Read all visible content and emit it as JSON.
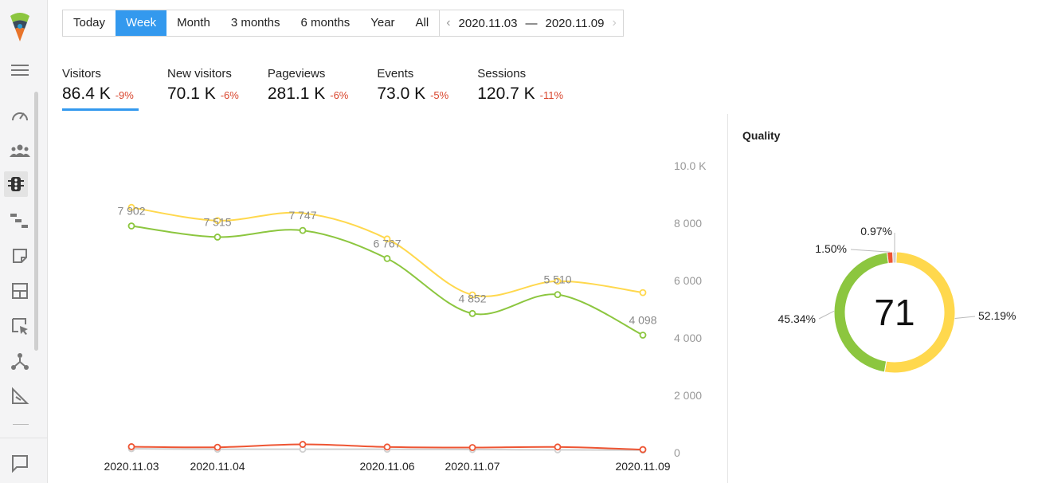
{
  "sidebar": {
    "icons": [
      "logo-icon",
      "menu-icon",
      "dashboard-icon",
      "visitors-icon",
      "traffic-icon",
      "funnel-icon",
      "notes-icon",
      "layout-icon",
      "click-icon",
      "network-icon",
      "report-icon",
      "chat-icon"
    ]
  },
  "period": {
    "buttons": [
      "Today",
      "Week",
      "Month",
      "3 months",
      "6 months",
      "Year",
      "All"
    ],
    "active": "Week",
    "date_from": "2020.11.03",
    "date_sep": "—",
    "date_to": "2020.11.09"
  },
  "metrics": [
    {
      "label": "Visitors",
      "value": "86.4 K",
      "change": "-9%"
    },
    {
      "label": "New visitors",
      "value": "70.1 K",
      "change": "-6%"
    },
    {
      "label": "Pageviews",
      "value": "281.1 K",
      "change": "-6%"
    },
    {
      "label": "Events",
      "value": "73.0 K",
      "change": "-5%"
    },
    {
      "label": "Sessions",
      "value": "120.7 K",
      "change": "-11%"
    }
  ],
  "colors": {
    "accent": "#3399ee",
    "negative": "#d9462e",
    "yellow": "#ffd84d",
    "green": "#8cc63f",
    "red": "#ee5533",
    "gray": "#d0d0d0"
  },
  "chart_data": {
    "type": "line",
    "y_ticks": [
      "10.0 K",
      "8 000",
      "6 000",
      "4 000",
      "2 000",
      "0"
    ],
    "ylim": [
      0,
      10000
    ],
    "x_labels": [
      "2020.11.03",
      "2020.11.04",
      "2020.11.06",
      "2020.11.07",
      "2020.11.09"
    ],
    "x": [
      "2020.11.03",
      "2020.11.04",
      "2020.11.05",
      "2020.11.06",
      "2020.11.07",
      "2020.11.08",
      "2020.11.09"
    ],
    "series": [
      {
        "color": "#ffd84d",
        "values": [
          8550,
          8090,
          8350,
          7450,
          5500,
          5980,
          5580
        ]
      },
      {
        "color": "#8cc63f",
        "values": [
          7902,
          7515,
          7747,
          6767,
          4852,
          5510,
          4098
        ],
        "labels": [
          "7 902",
          "7 515",
          "7 747",
          "6 767",
          "4 852",
          "5 510",
          "4 098"
        ]
      },
      {
        "color": "#ee5533",
        "values": [
          210,
          190,
          290,
          200,
          180,
          200,
          110
        ]
      },
      {
        "color": "#d0d0d0",
        "values": [
          140,
          120,
          120,
          120,
          110,
          100,
          90
        ]
      }
    ]
  },
  "quality": {
    "title": "Quality",
    "score": "71",
    "slices": [
      {
        "label": "52.19%",
        "value": 52.19,
        "color": "#ffd84d"
      },
      {
        "label": "45.34%",
        "value": 45.34,
        "color": "#8cc63f"
      },
      {
        "label": "1.50%",
        "value": 1.5,
        "color": "#ee5533"
      },
      {
        "label": "0.97%",
        "value": 0.97,
        "color": "#d0d0d0"
      }
    ]
  }
}
